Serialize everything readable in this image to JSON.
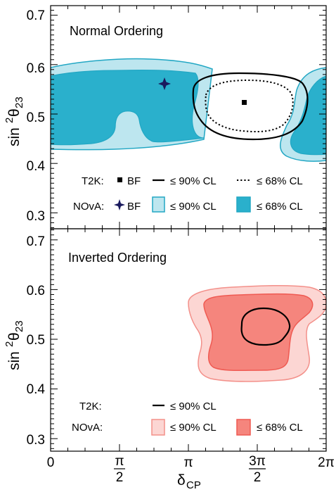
{
  "chart_data": [
    {
      "type": "contour",
      "panel": "top",
      "title": "Normal Ordering",
      "xlabel": "δCP",
      "ylabel": "sin²θ23",
      "xlim": [
        0,
        6.2832
      ],
      "ylim": [
        0.28,
        0.72
      ],
      "xticks": [
        "0",
        "π/2",
        "π",
        "3π/2",
        "2π"
      ],
      "yticks": [
        "0.3",
        "0.4",
        "0.5",
        "0.6",
        "0.7"
      ],
      "colors": {
        "nova90": "#bde6ef",
        "nova68": "#2ab0cc",
        "nova_edge": "#22a7c4",
        "t2k": "#000000",
        "nova_bf": "#1a1a5e"
      },
      "series": [
        {
          "name": "T2K BF",
          "marker": "square",
          "x": 4.49,
          "y": 0.53
        },
        {
          "name": "T2K ≤ 90% CL",
          "style": "solid",
          "closed": true,
          "x": [
            3.4,
            3.6,
            4.0,
            4.4,
            4.8,
            5.2,
            5.35,
            5.3,
            5.0,
            4.6,
            4.2,
            3.8,
            3.5,
            3.4
          ],
          "y": [
            0.55,
            0.575,
            0.585,
            0.588,
            0.585,
            0.56,
            0.52,
            0.48,
            0.445,
            0.43,
            0.435,
            0.455,
            0.5,
            0.55
          ]
        },
        {
          "name": "T2K ≤ 68% CL",
          "style": "dotted",
          "closed": true,
          "x": [
            3.6,
            3.9,
            4.4,
            4.8,
            5.1,
            5.2,
            5.0,
            4.6,
            4.1,
            3.7,
            3.6
          ],
          "y": [
            0.54,
            0.565,
            0.575,
            0.57,
            0.545,
            0.51,
            0.475,
            0.455,
            0.465,
            0.5,
            0.54
          ]
        },
        {
          "name": "NOvA BF",
          "marker": "star",
          "x": 2.65,
          "y": 0.57
        },
        {
          "name": "NOvA ≤ 90% CL",
          "band": "contour"
        },
        {
          "name": "NOvA ≤ 68% CL",
          "band": "contour"
        }
      ]
    },
    {
      "type": "contour",
      "panel": "bottom",
      "title": "Inverted Ordering",
      "xlabel": "δCP",
      "ylabel": "sin²θ23",
      "xlim": [
        0,
        6.2832
      ],
      "ylim": [
        0.28,
        0.72
      ],
      "xticks": [
        "0",
        "π/2",
        "π",
        "3π/2",
        "2π"
      ],
      "yticks": [
        "0.3",
        "0.4",
        "0.5",
        "0.6",
        "0.7"
      ],
      "colors": {
        "nova90": "#fcd6d3",
        "nova68": "#f5857d",
        "nova_edge": "#ef5a52",
        "t2k": "#000000"
      },
      "series": [
        {
          "name": "T2K ≤ 90% CL",
          "style": "solid",
          "closed": true,
          "x": [
            4.4,
            4.6,
            5.0,
            5.3,
            5.5,
            5.45,
            5.1,
            4.8,
            4.5,
            4.4
          ],
          "y": [
            0.545,
            0.563,
            0.568,
            0.555,
            0.525,
            0.5,
            0.47,
            0.47,
            0.495,
            0.545
          ]
        },
        {
          "name": "NOvA ≤ 90% CL",
          "band": "contour"
        },
        {
          "name": "NOvA ≤ 68% CL",
          "band": "contour"
        }
      ]
    }
  ],
  "legend_top": {
    "t2k_label": "T2K:",
    "t2k_bf": "BF",
    "t2k_90": "≤ 90% CL",
    "t2k_68": "≤ 68% CL",
    "nova_label": "NOvA:",
    "nova_bf": "BF",
    "nova_90": "≤ 90% CL",
    "nova_68": "≤ 68% CL"
  },
  "legend_bottom": {
    "t2k_label": "T2K:",
    "t2k_90": "≤ 90% CL",
    "nova_label": "NOvA:",
    "nova_90": "≤ 90% CL",
    "nova_68": "≤ 68% CL"
  },
  "axes": {
    "x_title": "δ",
    "x_title_sub": "CP",
    "y_title": "sin",
    "y_title_sup": "2",
    "y_title_theta": "θ",
    "y_title_sub": "23"
  },
  "ticks": {
    "y": [
      "0.3",
      "0.4",
      "0.5",
      "0.6",
      "0.7"
    ],
    "x0": "0",
    "x_pi2_num": "π",
    "x_pi2_den": "2",
    "x_pi": "π",
    "x_3pi2_num": "3π",
    "x_3pi2_den": "2",
    "x_2pi": "2π"
  }
}
